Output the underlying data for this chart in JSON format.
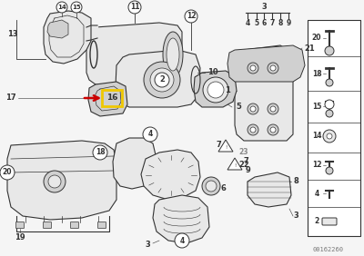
{
  "background_color": "#f5f5f5",
  "diagram_color": "#1a1a1a",
  "highlight_box_color": "#f0c800",
  "arrow_color": "#cc0000",
  "watermark": "00162260",
  "fig_width": 4.0,
  "fig_height": 2.82,
  "dpi": 100,
  "line_color": "#333333",
  "fill_light": "#e8e8e8",
  "fill_mid": "#d0d0d0",
  "fill_dark": "#b8b8b8"
}
